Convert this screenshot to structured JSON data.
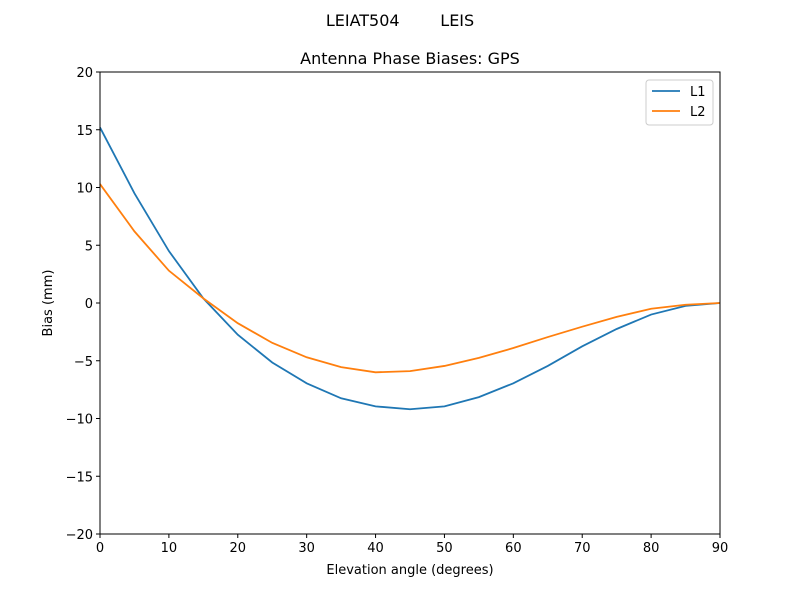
{
  "suptitle": "LEIAT504        LEIS",
  "chart_data": {
    "type": "line",
    "title": "Antenna Phase Biases: GPS",
    "xlabel": "Elevation angle (degrees)",
    "ylabel": "Bias (mm)",
    "xlim": [
      0,
      90
    ],
    "ylim": [
      -20,
      20
    ],
    "xticks": [
      "0",
      "10",
      "20",
      "30",
      "40",
      "50",
      "60",
      "70",
      "80",
      "90"
    ],
    "yticks": [
      "−20",
      "−15",
      "−10",
      "−5",
      "0",
      "5",
      "10",
      "15",
      "20"
    ],
    "grid": false,
    "legend": "upper right",
    "x": [
      0,
      5,
      10,
      15,
      20,
      25,
      30,
      35,
      40,
      45,
      50,
      55,
      60,
      65,
      70,
      75,
      80,
      85,
      90
    ],
    "series": [
      {
        "name": "L1",
        "color": "#1f77b4",
        "values": [
          15.2,
          9.5,
          4.5,
          0.4,
          -2.75,
          -5.15,
          -6.95,
          -8.25,
          -8.95,
          -9.2,
          -8.95,
          -8.15,
          -6.95,
          -5.45,
          -3.75,
          -2.25,
          -1.0,
          -0.25,
          0
        ]
      },
      {
        "name": "L2",
        "color": "#ff7f0e",
        "values": [
          10.3,
          6.2,
          2.8,
          0.4,
          -1.75,
          -3.45,
          -4.7,
          -5.55,
          -6.0,
          -5.9,
          -5.45,
          -4.75,
          -3.9,
          -2.95,
          -2.05,
          -1.2,
          -0.5,
          -0.15,
          0
        ]
      }
    ]
  }
}
